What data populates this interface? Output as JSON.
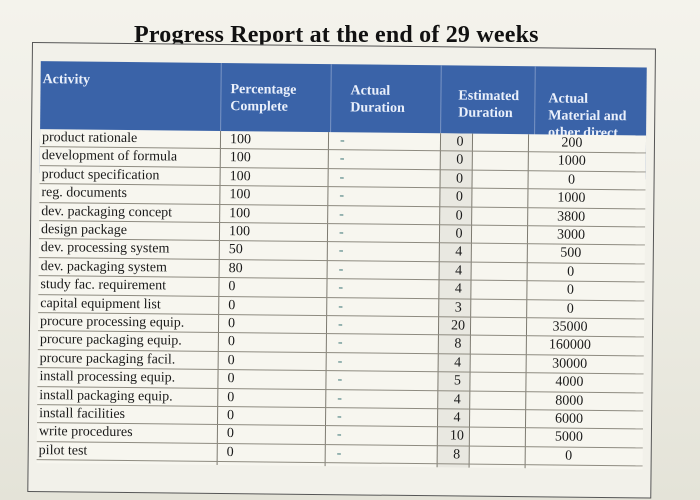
{
  "title": "Progress Report at the end of 29 weeks",
  "headers": {
    "activity": "Activity",
    "percentage": [
      "Percentage",
      "Complete"
    ],
    "actual_duration": [
      "Actual",
      "Duration"
    ],
    "estimated_duration": [
      "Estimated",
      "Duration"
    ],
    "actual_material": [
      "Actual",
      "Material and",
      "other direct"
    ]
  },
  "rows": [
    {
      "activity": "product rationale",
      "pct": "100",
      "dur": "-",
      "est": "0",
      "mat": "200"
    },
    {
      "activity": "development of formula",
      "pct": "100",
      "dur": "-",
      "est": "0",
      "mat": "1000"
    },
    {
      "activity": "product specification",
      "pct": "100",
      "dur": "-",
      "est": "0",
      "mat": "0"
    },
    {
      "activity": "reg. documents",
      "pct": "100",
      "dur": "-",
      "est": "0",
      "mat": "1000"
    },
    {
      "activity": "dev. packaging concept",
      "pct": "100",
      "dur": "-",
      "est": "0",
      "mat": "3800"
    },
    {
      "activity": "design package",
      "pct": "100",
      "dur": "-",
      "est": "0",
      "mat": "3000"
    },
    {
      "activity": "dev. processing system",
      "pct": "50",
      "dur": "-",
      "est": "4",
      "mat": "500"
    },
    {
      "activity": "dev. packaging system",
      "pct": "80",
      "dur": "-",
      "est": "4",
      "mat": "0"
    },
    {
      "activity": "study fac. requirement",
      "pct": "0",
      "dur": "-",
      "est": "4",
      "mat": "0"
    },
    {
      "activity": "capital equipment list",
      "pct": "0",
      "dur": "-",
      "est": "3",
      "mat": "0"
    },
    {
      "activity": "procure processing equip.",
      "pct": "0",
      "dur": "-",
      "est": "20",
      "mat": "35000"
    },
    {
      "activity": "procure packaging equip.",
      "pct": "0",
      "dur": "-",
      "est": "8",
      "mat": "160000"
    },
    {
      "activity": "procure packaging facil.",
      "pct": "0",
      "dur": "-",
      "est": "4",
      "mat": "30000"
    },
    {
      "activity": "install processing equip.",
      "pct": "0",
      "dur": "-",
      "est": "5",
      "mat": "4000"
    },
    {
      "activity": "install packaging equip.",
      "pct": "0",
      "dur": "-",
      "est": "4",
      "mat": "8000"
    },
    {
      "activity": "install facilities",
      "pct": "0",
      "dur": "-",
      "est": "4",
      "mat": "6000"
    },
    {
      "activity": "write procedures",
      "pct": "0",
      "dur": "-",
      "est": "10",
      "mat": "5000"
    },
    {
      "activity": "pilot test",
      "pct": "0",
      "dur": "-",
      "est": "8",
      "mat": "0"
    }
  ]
}
